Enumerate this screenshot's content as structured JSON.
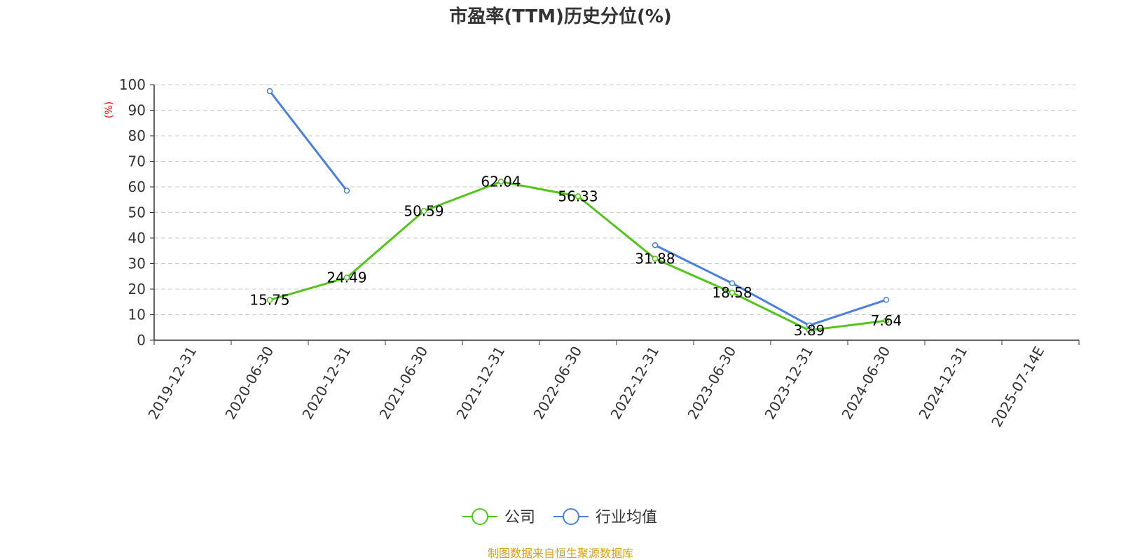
{
  "chart_data": {
    "type": "line",
    "title": "市盈率(TTM)历史分位(%)",
    "ylabel": "(%)",
    "xlabel": "",
    "ylim": [
      0,
      100
    ],
    "yticks": [
      0,
      10,
      20,
      30,
      40,
      50,
      60,
      70,
      80,
      90,
      100
    ],
    "categories": [
      "2019-12-31",
      "2020-06-30",
      "2020-12-31",
      "2021-06-30",
      "2021-12-31",
      "2022-06-30",
      "2022-12-31",
      "2023-06-30",
      "2023-12-31",
      "2024-06-30",
      "2024-12-31",
      "2025-07-14E"
    ],
    "grid": true,
    "legend_position": "bottom",
    "series": [
      {
        "name": "公司",
        "color": "#52c41a",
        "values": [
          null,
          15.75,
          24.49,
          50.59,
          62.04,
          56.33,
          31.88,
          18.58,
          3.89,
          7.64,
          null,
          null
        ],
        "labels": [
          null,
          "15.75",
          "24.49",
          "50.59",
          "62.04",
          "56.33",
          "31.88",
          "18.58",
          "3.89",
          "7.64",
          null,
          null
        ]
      },
      {
        "name": "行业均值",
        "color": "#4a7fdc",
        "values": [
          null,
          97.5,
          58.5,
          null,
          null,
          null,
          37.2,
          22.3,
          5.8,
          15.8,
          null,
          null
        ],
        "labels": [
          null,
          null,
          null,
          null,
          null,
          null,
          null,
          null,
          null,
          null,
          null,
          null
        ]
      }
    ]
  },
  "source_text": "制图数据来自恒生聚源数据库",
  "colors": {
    "axis": "#333333",
    "grid": "#cccccc",
    "ylabel": "#ff0000",
    "source": "#d4a017"
  }
}
